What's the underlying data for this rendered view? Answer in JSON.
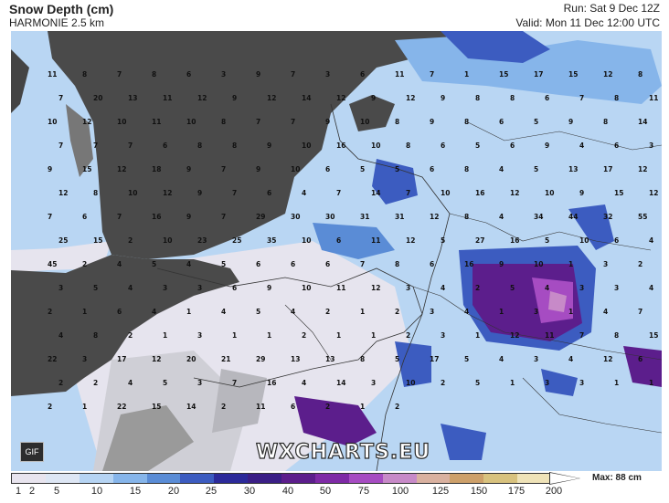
{
  "header": {
    "title": "Snow Depth (cm)",
    "model": "HARMONIE 2.5 km",
    "run": "Run: Sat 9 Dec 12Z",
    "valid": "Valid: Mon 11 Dec 12:00 UTC"
  },
  "map": {
    "watermark": "WXCHARTS.EU",
    "gif_button": "GIF"
  },
  "legend": {
    "max_label": "Max: 88 cm",
    "ticks": [
      "1",
      "2",
      "5",
      "10",
      "15",
      "20",
      "25",
      "30",
      "40",
      "50",
      "75",
      "100",
      "125",
      "150",
      "175",
      "200"
    ],
    "colors": [
      "#e8e4ee",
      "#dde6f4",
      "#b6d4f3",
      "#86b5ea",
      "#5a8cd6",
      "#3c5cc0",
      "#2c2a9a",
      "#3b1f86",
      "#5c1e8c",
      "#7e2aa6",
      "#a64cc2",
      "#c78ac8",
      "#d9b1a0",
      "#cda06a",
      "#d8c27e",
      "#efe3b8"
    ]
  },
  "snow_values": [
    "11",
    "8",
    "7",
    "8",
    "6",
    "3",
    "9",
    "7",
    "3",
    "6",
    "11",
    "7",
    "1",
    "15",
    "17",
    "15",
    "12",
    "8",
    "7",
    "20",
    "13",
    "11",
    "12",
    "9",
    "12",
    "14",
    "12",
    "9",
    "12",
    "9",
    "8",
    "8",
    "6",
    "7",
    "8",
    "11",
    "10",
    "12",
    "10",
    "11",
    "10",
    "8",
    "7",
    "7",
    "9",
    "10",
    "8",
    "9",
    "8",
    "6",
    "5",
    "9",
    "8",
    "14",
    "7",
    "7",
    "7",
    "6",
    "8",
    "8",
    "9",
    "10",
    "16",
    "10",
    "8",
    "6",
    "5",
    "6",
    "9",
    "4",
    "6",
    "3",
    "9",
    "15",
    "12",
    "18",
    "9",
    "7",
    "9",
    "10",
    "6",
    "5",
    "5",
    "6",
    "8",
    "4",
    "5",
    "13",
    "17",
    "12",
    "12",
    "8",
    "10",
    "12",
    "9",
    "7",
    "6",
    "4",
    "7",
    "14",
    "7",
    "10",
    "16",
    "12",
    "10",
    "9",
    "15",
    "12",
    "7",
    "6",
    "7",
    "16",
    "9",
    "7",
    "29",
    "30",
    "30",
    "31",
    "31",
    "12",
    "8",
    "4",
    "34",
    "44",
    "32",
    "55",
    "25",
    "15",
    "2",
    "10",
    "23",
    "25",
    "35",
    "10",
    "6",
    "11",
    "12",
    "5",
    "27",
    "16",
    "5",
    "10",
    "6",
    "4",
    "45",
    "2",
    "4",
    "5",
    "4",
    "5",
    "6",
    "6",
    "6",
    "7",
    "8",
    "6",
    "16",
    "9",
    "10",
    "1",
    "3",
    "2",
    "3",
    "5",
    "4",
    "3",
    "3",
    "6",
    "9",
    "10",
    "11",
    "12",
    "3",
    "4",
    "2",
    "5",
    "4",
    "3",
    "3",
    "4",
    "2",
    "1",
    "6",
    "4",
    "1",
    "4",
    "5",
    "4",
    "2",
    "1",
    "2",
    "3",
    "4",
    "1",
    "3",
    "1",
    "4",
    "7",
    "4",
    "8",
    "2",
    "1",
    "3",
    "1",
    "1",
    "2",
    "1",
    "1",
    "2",
    "3",
    "1",
    "12",
    "11",
    "7",
    "8",
    "15",
    "22",
    "3",
    "17",
    "12",
    "20",
    "21",
    "29",
    "13",
    "13",
    "8",
    "5",
    "17",
    "5",
    "4",
    "3",
    "4",
    "12",
    "6",
    "2",
    "2",
    "4",
    "5",
    "3",
    "7",
    "16",
    "4",
    "14",
    "3",
    "10",
    "2",
    "5",
    "1",
    "3",
    "3",
    "1",
    "1",
    "2",
    "1",
    "22",
    "15",
    "14",
    "2",
    "11",
    "6",
    "2",
    "1",
    "2"
  ]
}
